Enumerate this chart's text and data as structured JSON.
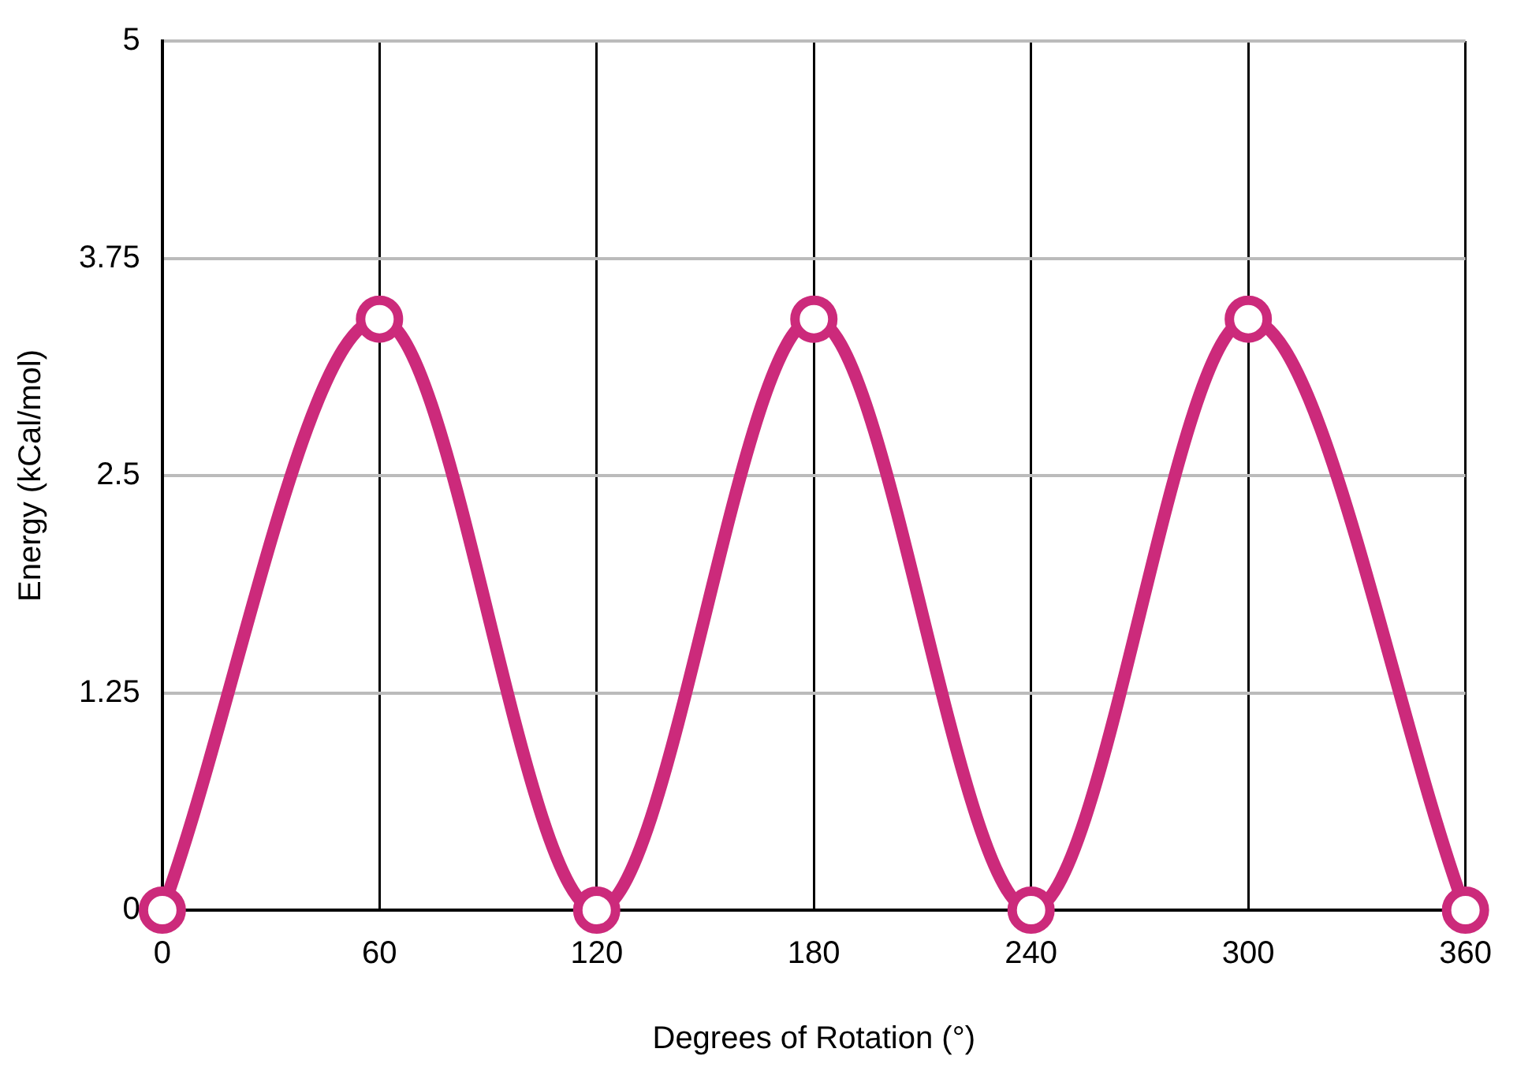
{
  "chart_data": {
    "type": "line",
    "xlabel": "Degrees of Rotation (°)",
    "ylabel": "Energy (kCal/mol)",
    "x": [
      0,
      60,
      120,
      180,
      240,
      300,
      360
    ],
    "series": [
      {
        "color": "#cc2a7b",
        "values": [
          0,
          3.4,
          0,
          3.4,
          0,
          3.4,
          0
        ]
      }
    ],
    "xlim": [
      0,
      360
    ],
    "xticks": [
      0,
      60,
      120,
      180,
      240,
      300,
      360
    ],
    "ylim": [
      0,
      5
    ],
    "yticks": [
      0,
      1.25,
      2.5,
      3.75,
      5
    ],
    "grid": true,
    "marker": "circle",
    "line_style": "solid",
    "legend": false
  }
}
